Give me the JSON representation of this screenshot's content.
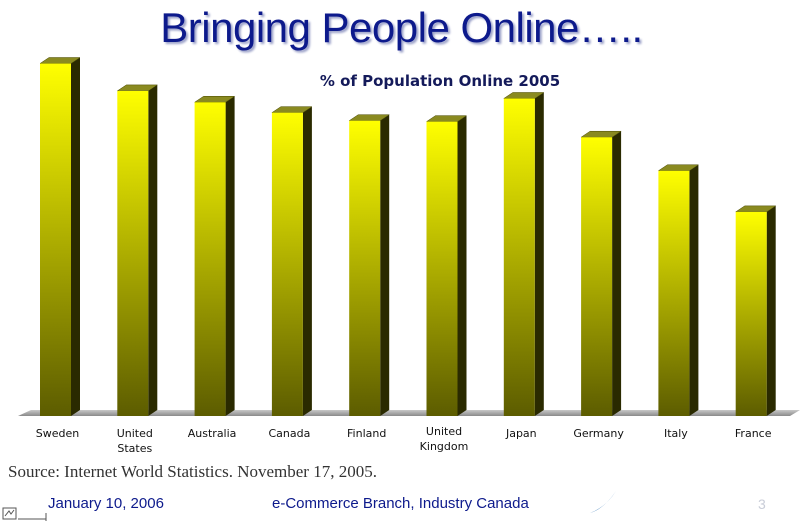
{
  "slide": {
    "title": "Bringing People Online…..",
    "source": "Source: Internet World Statistics. November 17, 2005.",
    "footer_date": "January 10, 2006",
    "footer_org": "e-Commerce Branch, Industry Canada",
    "page_number": "3"
  },
  "chart_data": {
    "type": "bar",
    "title": "% of Population Online 2005",
    "xlabel": "",
    "ylabel": "",
    "categories": [
      "Sweden",
      "United States",
      "Australia",
      "Canada",
      "Finland",
      "United Kingdom",
      "Japan",
      "Germany",
      "Italy",
      "France"
    ],
    "tick_labels": [
      [
        "Sweden"
      ],
      [
        "United",
        "States"
      ],
      [
        "Australia"
      ],
      [
        "Canada"
      ],
      [
        "Finland"
      ],
      [
        "United",
        "Kingdom"
      ],
      [
        "Japan"
      ],
      [
        "Germany"
      ],
      [
        "Italy"
      ],
      [
        "France"
      ]
    ],
    "values": [
      74.6,
      68.8,
      66.4,
      64.2,
      62.5,
      62.3,
      67.2,
      59.0,
      51.9,
      43.2
    ],
    "ylim": [
      0,
      80
    ],
    "grid": false,
    "legend": "none",
    "colors": {
      "bar_light": "#ffff00",
      "bar_dark": "#5c5c00",
      "floor": "#999999"
    }
  }
}
